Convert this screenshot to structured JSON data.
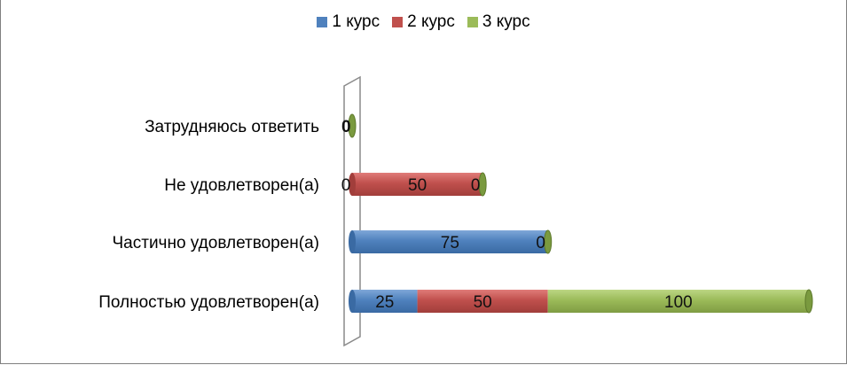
{
  "chart_data": {
    "type": "bar",
    "orientation": "horizontal",
    "stacked": true,
    "style": "3d-cylinder",
    "categories": [
      "Затрудняюсь ответить",
      "Не удовлетворен(а)",
      "Частично удовлетворен(а)",
      "Полностью удовлетворен(а)"
    ],
    "series": [
      {
        "name": "1 курс",
        "color": "#4F81BD",
        "values": [
          0,
          0,
          75,
          25
        ]
      },
      {
        "name": "2 курс",
        "color": "#C0504D",
        "values": [
          0,
          50,
          0,
          50
        ]
      },
      {
        "name": "3 курс",
        "color": "#9BBB59",
        "values": [
          0,
          0,
          0,
          100
        ]
      }
    ],
    "data_labels": [
      [
        "0",
        "",
        ""
      ],
      [
        "0",
        "50",
        "0"
      ],
      [
        "75",
        "",
        "0"
      ],
      [
        "25",
        "50",
        "100"
      ]
    ],
    "xlim": [
      0,
      175
    ],
    "title": "",
    "xlabel": "",
    "ylabel": "",
    "grid": false,
    "legend_position": "top"
  }
}
